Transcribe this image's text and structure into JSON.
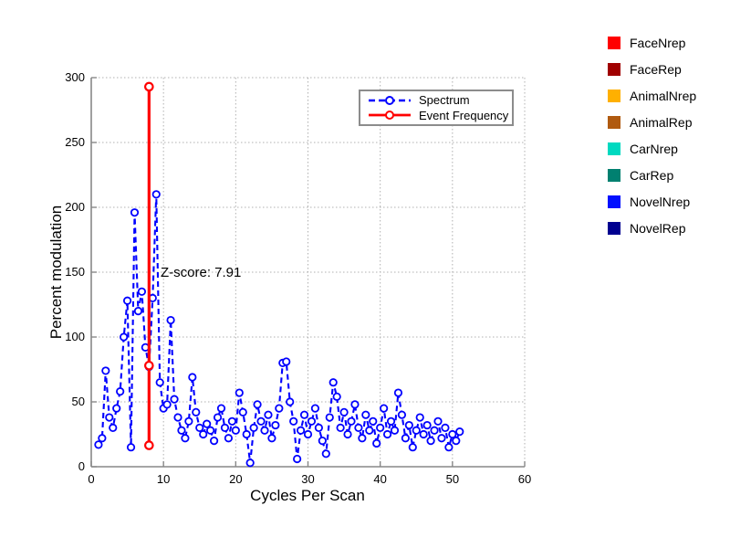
{
  "chart_data": {
    "type": "line",
    "title": "",
    "xlabel": "Cycles Per Scan",
    "ylabel": "Percent modulation",
    "xlim": [
      0,
      60
    ],
    "ylim": [
      0,
      300
    ],
    "xticks": [
      0,
      10,
      20,
      30,
      40,
      50,
      60
    ],
    "yticks": [
      0,
      50,
      100,
      150,
      200,
      250,
      300
    ],
    "grid": "dotted",
    "grid_color": "#b0b0b0",
    "axis_color": "#888888",
    "legend_position": "top-right-inside",
    "annotation": "Z-score: 7.91",
    "series": [
      {
        "name": "Spectrum",
        "color": "#0000ff",
        "style": "dashed",
        "marker": "circle",
        "x_start": 1.0,
        "x_step": 0.5,
        "values": [
          17,
          22,
          74,
          38,
          30,
          45,
          58,
          100,
          128,
          15,
          196,
          120,
          135,
          92,
          77,
          130,
          210,
          65,
          45,
          48,
          113,
          52,
          38,
          28,
          22,
          35,
          69,
          42,
          30,
          25,
          33,
          28,
          20,
          38,
          45,
          30,
          22,
          35,
          28,
          57,
          42,
          25,
          3,
          30,
          48,
          35,
          28,
          40,
          22,
          32,
          45,
          80,
          81,
          50,
          35,
          6,
          28,
          40,
          25,
          35,
          45,
          30,
          20,
          10,
          38,
          65,
          54,
          30,
          42,
          25,
          35,
          48,
          30,
          22,
          40,
          28,
          35,
          18,
          30,
          45,
          25,
          35,
          28,
          57,
          40,
          22,
          32,
          15,
          28,
          38,
          25,
          32,
          20,
          28,
          35,
          22,
          30,
          15,
          25,
          20,
          27
        ]
      },
      {
        "name": "Event Frequency",
        "color": "#ff0000",
        "style": "solid",
        "marker": "circle",
        "points": [
          [
            8,
            16.5
          ],
          [
            8,
            78
          ],
          [
            8,
            293
          ]
        ]
      }
    ]
  },
  "side_legend": {
    "items": [
      {
        "label": "FaceNrep",
        "color": "#ff0000"
      },
      {
        "label": "FaceRep",
        "color": "#a00000"
      },
      {
        "label": "AnimalNrep",
        "color": "#ffb000"
      },
      {
        "label": "AnimalRep",
        "color": "#b05a10"
      },
      {
        "label": "CarNrep",
        "color": "#00d9c0"
      },
      {
        "label": "CarRep",
        "color": "#008070"
      },
      {
        "label": "NovelNrep",
        "color": "#0010ff"
      },
      {
        "label": "NovelRep",
        "color": "#000090"
      }
    ]
  }
}
